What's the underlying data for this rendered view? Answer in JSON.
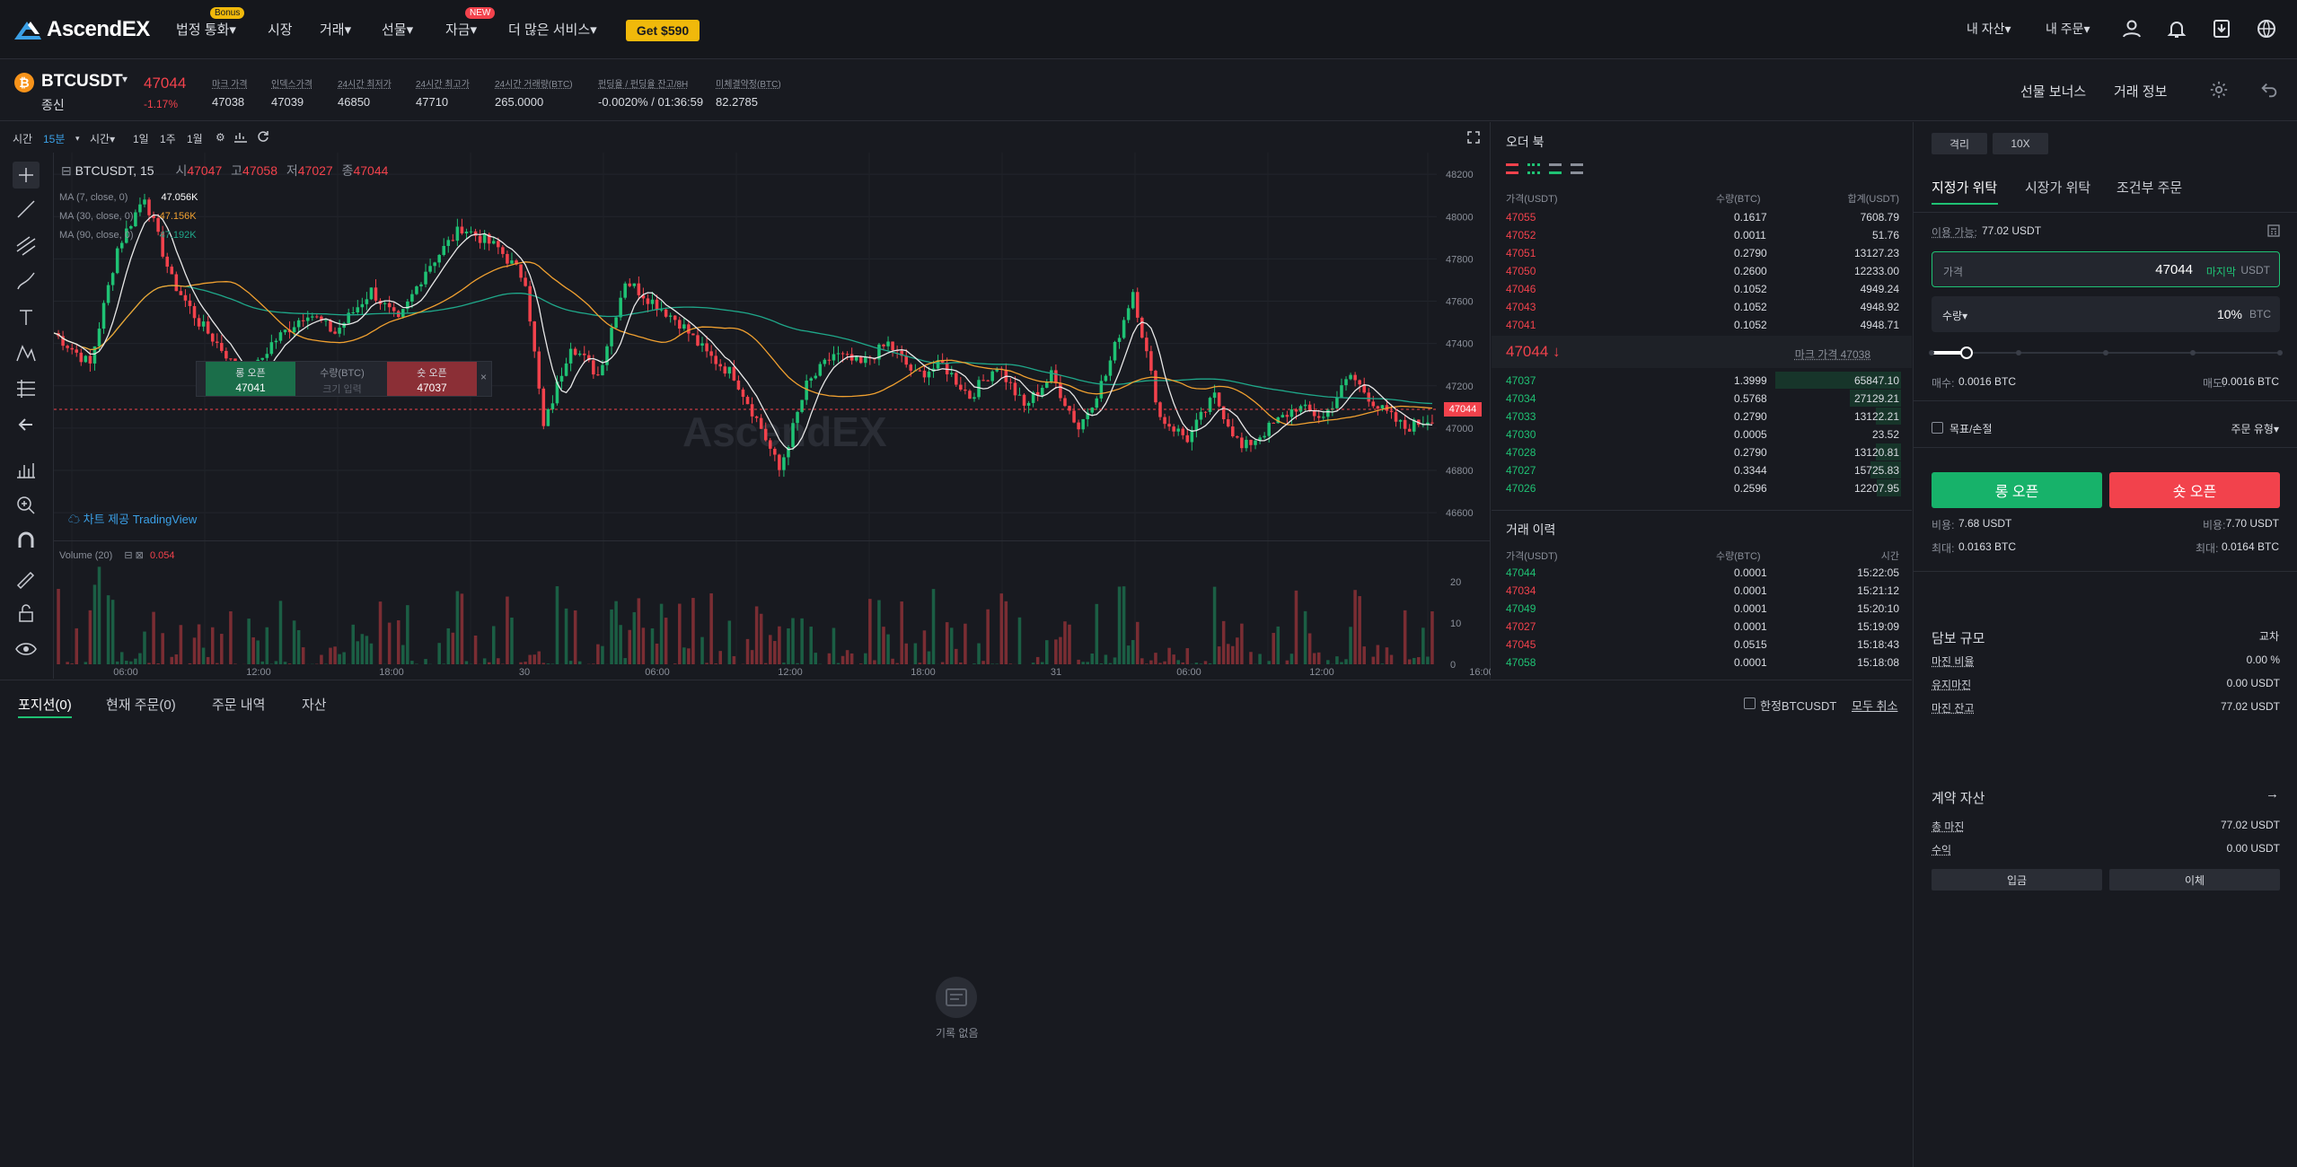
{
  "nav": {
    "logo": "AscendEX",
    "items": [
      {
        "label": "법정 통화▾",
        "badge": "Bonus"
      },
      {
        "label": "시장"
      },
      {
        "label": "거래▾"
      },
      {
        "label": "선물▾"
      },
      {
        "label": "자금▾",
        "badge": "NEW"
      },
      {
        "label": "더 많은 서비스▾"
      }
    ],
    "promo": "Get $590",
    "assets": "내 자산▾",
    "orders": "내 주문▾"
  },
  "ticker": {
    "symbol": "BTCUSDT",
    "subtitle": "종신",
    "price": "47044",
    "change": "-1.17%",
    "stats": [
      {
        "label": "마크 가격",
        "value": "47038"
      },
      {
        "label": "인덱스가격",
        "value": "47039"
      },
      {
        "label": "24시간 최저가",
        "value": "46850"
      },
      {
        "label": "24시간 최고가",
        "value": "47710"
      },
      {
        "label": "24시간 거래량(BTC)",
        "value": "265.0000"
      },
      {
        "label": "펀딩율 / 펀딩율 잔고/8H",
        "value": "-0.0020% / 01:36:59"
      },
      {
        "label": "미체결약정(BTC)",
        "value": "82.2785"
      }
    ],
    "bonus": "선물 보너스",
    "info": "거래 정보"
  },
  "chart_toolbar": {
    "time": "시간",
    "interval": "15분",
    "items": [
      "시간▾",
      "1일",
      "1주",
      "1월"
    ]
  },
  "chart_header": {
    "symbol": "BTCUSDT, 15",
    "o_label": "시",
    "o": "47047",
    "h_label": "고",
    "h": "47058",
    "l_label": "저",
    "l": "47027",
    "c_label": "종",
    "c": "47044",
    "ma7": "MA (7, close, 0)",
    "ma7_val": "47.056K",
    "ma30": "MA (30, close, 0)",
    "ma30_val": "47.156K",
    "ma90": "MA (90, close, 0)",
    "ma90_val": "47.192K",
    "volume": "Volume (20)",
    "volume_val": "0.054",
    "credit": "차트 제공 TradingView",
    "watermark": "AscendEX",
    "price_tag": "47044"
  },
  "quick_trade": {
    "long_label": "롱 오픈",
    "long_price": "47041",
    "qty_label": "수량(BTC)",
    "qty_placeholder": "크기 입력",
    "short_label": "숏 오픈",
    "short_price": "47037"
  },
  "chart_data": {
    "type": "candlestick",
    "title": "BTCUSDT, 15",
    "y_ticks": [
      "48200",
      "48000",
      "47800",
      "47600",
      "47400",
      "47200",
      "47000",
      "46800",
      "46600"
    ],
    "ylim": [
      46520,
      48260
    ],
    "volume_ticks": [
      "20",
      "10",
      "0"
    ],
    "x_ticks": [
      "06:00",
      "12:00",
      "18:00",
      "30",
      "06:00",
      "12:00",
      "18:00",
      "31",
      "06:00",
      "12:00",
      "16:00"
    ],
    "last_price": 47044,
    "colors": {
      "up": "#1fc274",
      "down": "#f2424c",
      "ma7": "#e8e8e8",
      "ma30": "#f0a030",
      "ma90": "#1fa88a"
    },
    "series_hint": "approximate 15m candles from chart",
    "keypoints": [
      [
        0,
        47450
      ],
      [
        8,
        47300
      ],
      [
        14,
        47850
      ],
      [
        20,
        48100
      ],
      [
        26,
        47700
      ],
      [
        32,
        47500
      ],
      [
        38,
        47350
      ],
      [
        42,
        47200
      ],
      [
        48,
        47400
      ],
      [
        56,
        47550
      ],
      [
        62,
        47450
      ],
      [
        70,
        47650
      ],
      [
        76,
        47500
      ],
      [
        82,
        47750
      ],
      [
        90,
        47950
      ],
      [
        98,
        47850
      ],
      [
        104,
        47700
      ],
      [
        108,
        47000
      ],
      [
        114,
        47400
      ],
      [
        120,
        47250
      ],
      [
        126,
        47700
      ],
      [
        132,
        47600
      ],
      [
        138,
        47500
      ],
      [
        144,
        47350
      ],
      [
        150,
        47250
      ],
      [
        156,
        47000
      ],
      [
        160,
        46800
      ],
      [
        166,
        47200
      ],
      [
        172,
        47350
      ],
      [
        178,
        47300
      ],
      [
        184,
        47400
      ],
      [
        190,
        47250
      ],
      [
        196,
        47300
      ],
      [
        202,
        47150
      ],
      [
        208,
        47300
      ],
      [
        214,
        47100
      ],
      [
        220,
        47250
      ],
      [
        226,
        47000
      ],
      [
        232,
        47250
      ],
      [
        238,
        47650
      ],
      [
        244,
        47050
      ],
      [
        250,
        46950
      ],
      [
        256,
        47150
      ],
      [
        262,
        46900
      ],
      [
        268,
        47000
      ],
      [
        274,
        47100
      ],
      [
        280,
        47050
      ],
      [
        286,
        47250
      ],
      [
        292,
        47100
      ],
      [
        298,
        47000
      ],
      [
        304,
        47050
      ]
    ]
  },
  "orderbook": {
    "title": "오더 북",
    "headers": [
      "가격(USDT)",
      "수량(BTC)",
      "합계(USDT)"
    ],
    "asks": [
      [
        "47055",
        "0.1617",
        "7608.79"
      ],
      [
        "47052",
        "0.0011",
        "51.76"
      ],
      [
        "47051",
        "0.2790",
        "13127.23"
      ],
      [
        "47050",
        "0.2600",
        "12233.00"
      ],
      [
        "47046",
        "0.1052",
        "4949.24"
      ],
      [
        "47043",
        "0.1052",
        "4948.92"
      ],
      [
        "47041",
        "0.1052",
        "4948.71"
      ]
    ],
    "last": "47044 ↓",
    "mark_label": "마크 가격 47038",
    "bids": [
      [
        "47037",
        "1.3999",
        "65847.10"
      ],
      [
        "47034",
        "0.5768",
        "27129.21"
      ],
      [
        "47033",
        "0.2790",
        "13122.21"
      ],
      [
        "47030",
        "0.0005",
        "23.52"
      ],
      [
        "47028",
        "0.2790",
        "13120.81"
      ],
      [
        "47027",
        "0.3344",
        "15725.83"
      ],
      [
        "47026",
        "0.2596",
        "12207.95"
      ]
    ],
    "bid_depth": [
      1.0,
      0.41,
      0.2,
      0.0,
      0.2,
      0.24,
      0.19
    ]
  },
  "trades": {
    "title": "거래 이력",
    "headers": [
      "가격(USDT)",
      "수량(BTC)",
      "시간"
    ],
    "rows": [
      {
        "price": "47044",
        "qty": "0.0001",
        "time": "15:22:05",
        "side": "buy"
      },
      {
        "price": "47034",
        "qty": "0.0001",
        "time": "15:21:12",
        "side": "sell"
      },
      {
        "price": "47049",
        "qty": "0.0001",
        "time": "15:20:10",
        "side": "buy"
      },
      {
        "price": "47027",
        "qty": "0.0001",
        "time": "15:19:09",
        "side": "sell"
      },
      {
        "price": "47045",
        "qty": "0.0515",
        "time": "15:18:43",
        "side": "sell"
      },
      {
        "price": "47058",
        "qty": "0.0001",
        "time": "15:18:08",
        "side": "buy"
      }
    ]
  },
  "bottom": {
    "tabs": [
      "포지션(0)",
      "현재 주문(0)",
      "주문 내역",
      "자산"
    ],
    "only_label": "한정BTCUSDT",
    "cancel_all": "모두 취소",
    "empty": "기록 없음"
  },
  "order_form": {
    "mode": "격리",
    "leverage": "10X",
    "tabs": [
      "지정가 위탁",
      "시장가 위탁",
      "조건부 주문"
    ],
    "available_label": "이용 가능:",
    "available": "77.02 USDT",
    "price_label": "가격",
    "price_value": "47044",
    "last_price_link": "마지막",
    "price_unit": "USDT",
    "qty_label": "수량▾",
    "qty_value": "10%",
    "qty_unit": "BTC",
    "slider_percent": 10,
    "buy_label": "매수:",
    "buy_qty": "0.0016 BTC",
    "sell_label": "매도:",
    "sell_qty": "0.0016 BTC",
    "tpsl": "목표/손절",
    "order_type": "주문 유형▾",
    "long_btn": "롱 오픈",
    "short_btn": "숏 오픈",
    "cost_label": "비용:",
    "cost_long": "7.68 USDT",
    "cost_short": "7.70 USDT",
    "max_label": "최대:",
    "max_long": "0.0163 BTC",
    "max_short": "0.0164 BTC"
  },
  "margin": {
    "title": "담보 규모",
    "switch": "교차",
    "rows": [
      {
        "k": "마진 비율",
        "v": "0.00 %"
      },
      {
        "k": "유지마진",
        "v": "0.00 USDT"
      },
      {
        "k": "마진 잔고",
        "v": "77.02 USDT"
      }
    ]
  },
  "contract": {
    "title": "계약 자산",
    "rows": [
      {
        "k": "총 마진",
        "v": "77.02 USDT"
      },
      {
        "k": "수익",
        "v": "0.00 USDT"
      }
    ],
    "deposit": "입금",
    "transfer": "이체"
  }
}
